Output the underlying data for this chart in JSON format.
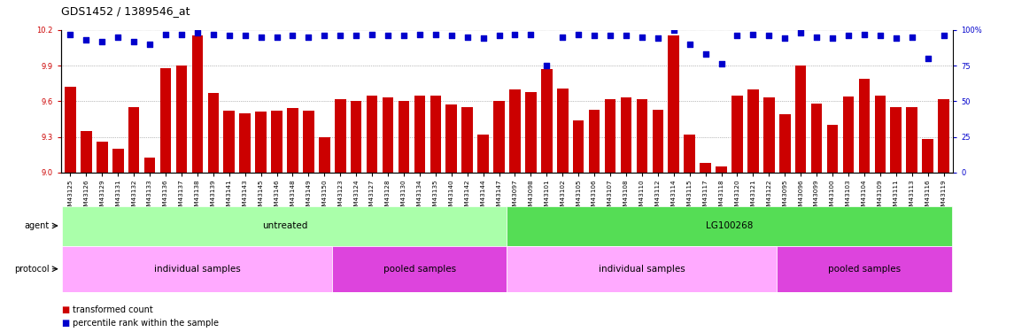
{
  "title": "GDS1452 / 1389546_at",
  "ylim_left": [
    9,
    10.2
  ],
  "ylim_right": [
    0,
    100
  ],
  "yticks_left": [
    9,
    9.3,
    9.6,
    9.9,
    10.2
  ],
  "yticks_right": [
    0,
    25,
    50,
    75,
    100
  ],
  "samples": [
    "GSM43125",
    "GSM43126",
    "GSM43129",
    "GSM43131",
    "GSM43132",
    "GSM43133",
    "GSM43136",
    "GSM43137",
    "GSM43138",
    "GSM43139",
    "GSM43141",
    "GSM43143",
    "GSM43145",
    "GSM43146",
    "GSM43148",
    "GSM43149",
    "GSM43150",
    "GSM43123",
    "GSM43124",
    "GSM43127",
    "GSM43128",
    "GSM43130",
    "GSM43134",
    "GSM43135",
    "GSM43140",
    "GSM43142",
    "GSM43144",
    "GSM43147",
    "GSM43097",
    "GSM43098",
    "GSM43101",
    "GSM43102",
    "GSM43105",
    "GSM43106",
    "GSM43107",
    "GSM43108",
    "GSM43110",
    "GSM43112",
    "GSM43114",
    "GSM43115",
    "GSM43117",
    "GSM43118",
    "GSM43120",
    "GSM43121",
    "GSM43122",
    "GSM43095",
    "GSM43096",
    "GSM43099",
    "GSM43100",
    "GSM43103",
    "GSM43104",
    "GSM43109",
    "GSM43111",
    "GSM43113",
    "GSM43116",
    "GSM43119"
  ],
  "bar_values": [
    9.72,
    9.35,
    9.26,
    9.2,
    9.55,
    9.13,
    9.88,
    9.9,
    10.15,
    9.67,
    9.52,
    9.5,
    9.51,
    9.52,
    9.54,
    9.52,
    9.3,
    9.62,
    9.6,
    9.65,
    9.63,
    9.6,
    9.65,
    9.65,
    9.57,
    9.55,
    9.32,
    9.6,
    9.7,
    9.68,
    9.87,
    9.71,
    9.44,
    9.53,
    9.62,
    9.63,
    9.62,
    9.53,
    10.15,
    9.32,
    9.08,
    9.05,
    9.65,
    9.7,
    9.63,
    9.49,
    9.9,
    9.58,
    9.4,
    9.64,
    9.79,
    9.65,
    9.55,
    9.55,
    9.28,
    9.62
  ],
  "percentile_values": [
    97,
    93,
    92,
    95,
    92,
    90,
    97,
    97,
    98,
    97,
    96,
    96,
    95,
    95,
    96,
    95,
    96,
    96,
    96,
    97,
    96,
    96,
    97,
    97,
    96,
    95,
    94,
    96,
    97,
    97,
    75,
    95,
    97,
    96,
    96,
    96,
    95,
    94,
    100,
    90,
    83,
    76,
    96,
    97,
    96,
    94,
    98,
    95,
    94,
    96,
    97,
    96,
    94,
    95,
    80,
    96
  ],
  "agent_regions": [
    {
      "label": "untreated",
      "start": 0,
      "end": 27,
      "color": "#AAFFAA"
    },
    {
      "label": "LG100268",
      "start": 28,
      "end": 55,
      "color": "#55DD55"
    }
  ],
  "protocol_regions": [
    {
      "label": "individual samples",
      "start": 0,
      "end": 16,
      "color": "#FFAAFF"
    },
    {
      "label": "pooled samples",
      "start": 17,
      "end": 27,
      "color": "#DD44DD"
    },
    {
      "label": "individual samples",
      "start": 28,
      "end": 44,
      "color": "#FFAAFF"
    },
    {
      "label": "pooled samples",
      "start": 45,
      "end": 55,
      "color": "#DD44DD"
    }
  ],
  "bar_color": "#CC0000",
  "dot_color": "#0000CC",
  "background_color": "#FFFFFF",
  "axis_label_color_left": "#CC0000",
  "axis_label_color_right": "#0000CC",
  "label_fontsize": 7,
  "tick_fontsize": 6,
  "bar_width": 0.7
}
